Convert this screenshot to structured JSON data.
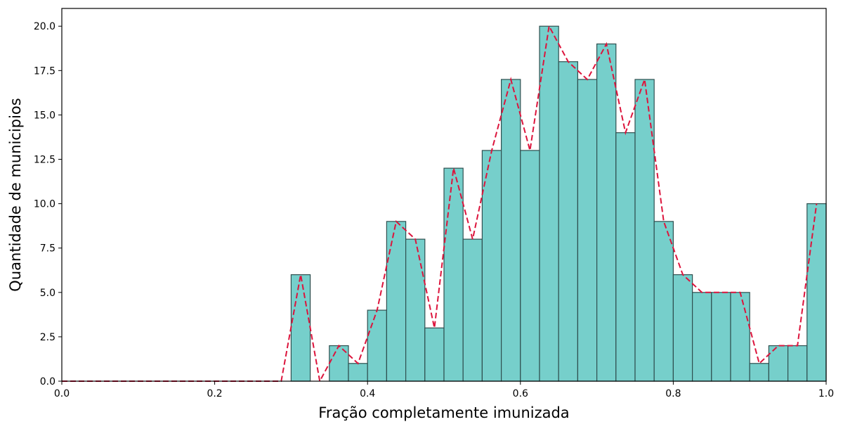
{
  "chart_data": {
    "type": "bar",
    "title": "",
    "xlabel": "Fração completamente imunizada",
    "ylabel": "Quantidade de municipios",
    "xlim": [
      0.0,
      1.0
    ],
    "ylim": [
      0.0,
      21.0
    ],
    "x_ticks": [
      0.0,
      0.2,
      0.4,
      0.6,
      0.8,
      1.0
    ],
    "x_tick_labels": [
      "0.0",
      "0.2",
      "0.4",
      "0.6",
      "0.8",
      "1.0"
    ],
    "y_ticks": [
      0.0,
      2.5,
      5.0,
      7.5,
      10.0,
      12.5,
      15.0,
      17.5,
      20.0
    ],
    "y_tick_labels": [
      "0.0",
      "2.5",
      "5.0",
      "7.5",
      "10.0",
      "12.5",
      "15.0",
      "17.5",
      "20.0"
    ],
    "grid": false,
    "bin_width": 0.025,
    "bins": [
      {
        "start": 0.3,
        "count": 6
      },
      {
        "start": 0.325,
        "count": 0
      },
      {
        "start": 0.35,
        "count": 2
      },
      {
        "start": 0.375,
        "count": 1
      },
      {
        "start": 0.4,
        "count": 4
      },
      {
        "start": 0.425,
        "count": 9
      },
      {
        "start": 0.45,
        "count": 8
      },
      {
        "start": 0.475,
        "count": 3
      },
      {
        "start": 0.5,
        "count": 12
      },
      {
        "start": 0.525,
        "count": 8
      },
      {
        "start": 0.55,
        "count": 13
      },
      {
        "start": 0.575,
        "count": 17
      },
      {
        "start": 0.6,
        "count": 13
      },
      {
        "start": 0.625,
        "count": 20
      },
      {
        "start": 0.65,
        "count": 18
      },
      {
        "start": 0.675,
        "count": 17
      },
      {
        "start": 0.7,
        "count": 19
      },
      {
        "start": 0.725,
        "count": 14
      },
      {
        "start": 0.75,
        "count": 17
      },
      {
        "start": 0.775,
        "count": 9
      },
      {
        "start": 0.8,
        "count": 6
      },
      {
        "start": 0.825,
        "count": 5
      },
      {
        "start": 0.85,
        "count": 5
      },
      {
        "start": 0.875,
        "count": 5
      },
      {
        "start": 0.9,
        "count": 1
      },
      {
        "start": 0.925,
        "count": 2
      },
      {
        "start": 0.95,
        "count": 2
      },
      {
        "start": 0.975,
        "count": 10
      }
    ],
    "line": {
      "points": [
        [
          0.0,
          0
        ],
        [
          0.287,
          0
        ],
        [
          0.3125,
          6
        ],
        [
          0.3375,
          0
        ],
        [
          0.3625,
          2
        ],
        [
          0.3875,
          1
        ],
        [
          0.4125,
          4
        ],
        [
          0.4375,
          9
        ],
        [
          0.4625,
          8
        ],
        [
          0.4875,
          3
        ],
        [
          0.5125,
          12
        ],
        [
          0.5375,
          8
        ],
        [
          0.5625,
          13
        ],
        [
          0.5875,
          17
        ],
        [
          0.6125,
          13
        ],
        [
          0.6375,
          20
        ],
        [
          0.6625,
          18
        ],
        [
          0.6875,
          17
        ],
        [
          0.7125,
          19
        ],
        [
          0.7375,
          14
        ],
        [
          0.7625,
          17
        ],
        [
          0.7875,
          9
        ],
        [
          0.8125,
          6
        ],
        [
          0.8375,
          5
        ],
        [
          0.8625,
          5
        ],
        [
          0.8875,
          5
        ],
        [
          0.9125,
          1
        ],
        [
          0.9375,
          2
        ],
        [
          0.9625,
          2
        ],
        [
          0.9875,
          10
        ]
      ]
    },
    "colors": {
      "bar_fill": "#76cfcb",
      "bar_edge": "#2f4f4f",
      "line": "#dc143c"
    }
  }
}
